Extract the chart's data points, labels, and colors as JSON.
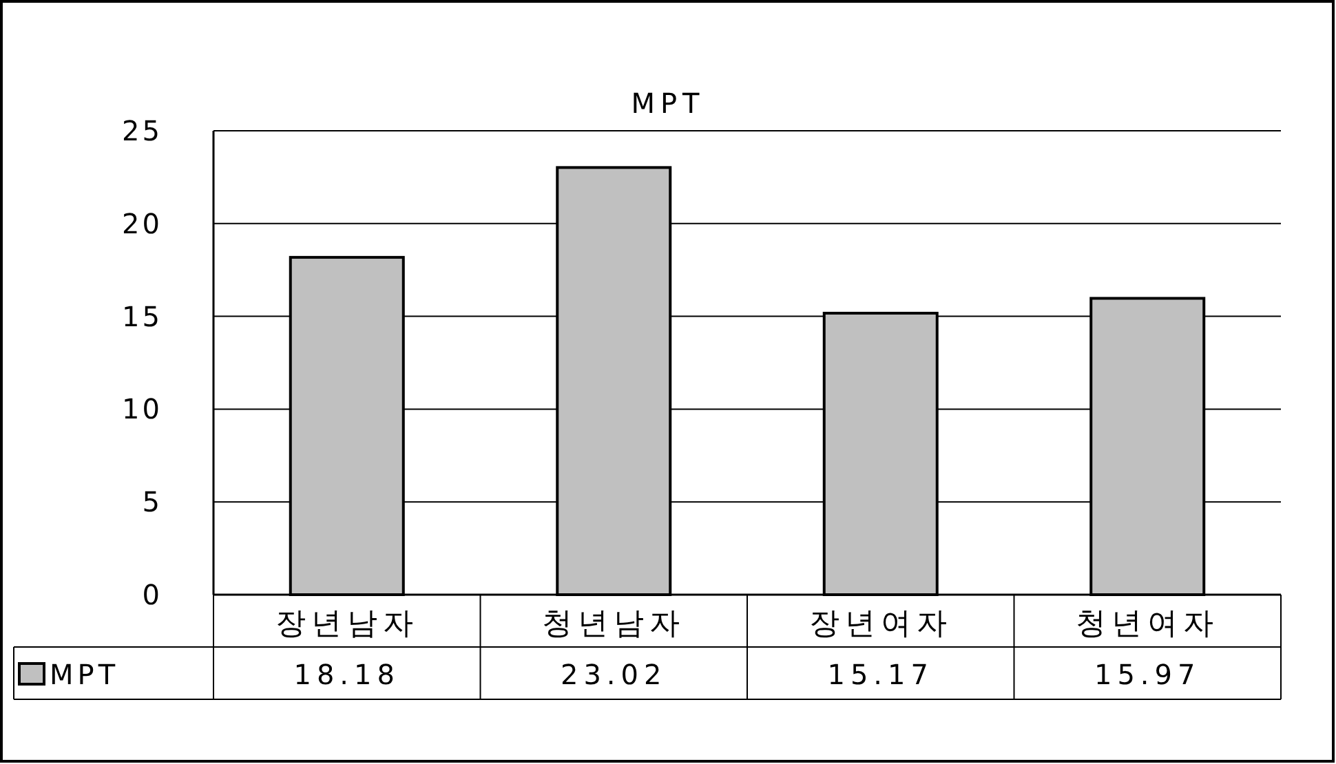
{
  "chart_data": {
    "type": "bar",
    "title": "MPT",
    "categories": [
      "장년남자",
      "청년남자",
      "장년여자",
      "청년여자"
    ],
    "series": [
      {
        "name": "MPT",
        "color": "#c0c0c0",
        "values": [
          18.18,
          23.02,
          15.17,
          15.97
        ]
      }
    ],
    "ylim": [
      0,
      25
    ],
    "yticks": [
      0,
      5,
      10,
      15,
      20,
      25
    ],
    "grid": "y",
    "legend": "bottom left",
    "data_labels": true
  }
}
